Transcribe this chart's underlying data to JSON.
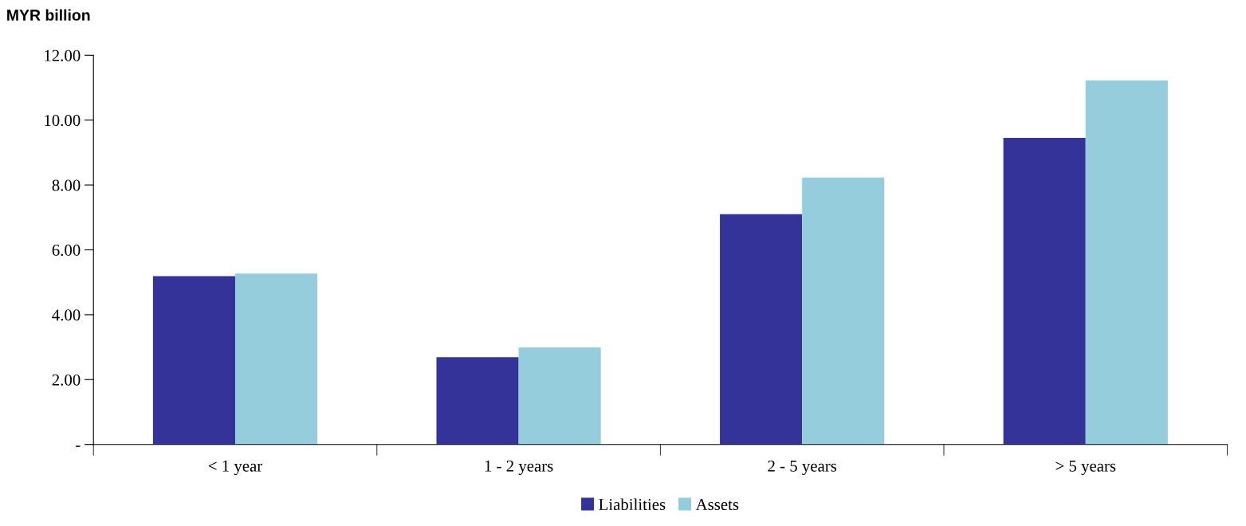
{
  "chart_data": {
    "type": "bar",
    "ylabel": "MYR billion",
    "categories": [
      "< 1 year",
      "1 - 2 years",
      "2 - 5 years",
      "> 5 years"
    ],
    "series": [
      {
        "name": "Liabilities",
        "color": "#333399",
        "values": [
          5.19,
          2.69,
          7.1,
          9.45
        ]
      },
      {
        "name": "Assets",
        "color": "#96cddd",
        "values": [
          5.27,
          2.99,
          8.23,
          11.22
        ]
      }
    ],
    "ylim": [
      0,
      12
    ],
    "yticks": [
      {
        "value": 0,
        "label": "-"
      },
      {
        "value": 2,
        "label": "2.00"
      },
      {
        "value": 4,
        "label": "4.00"
      },
      {
        "value": 6,
        "label": "6.00"
      },
      {
        "value": 8,
        "label": "8.00"
      },
      {
        "value": 10,
        "label": "10.00"
      },
      {
        "value": 12,
        "label": "12.00"
      }
    ],
    "grid": false,
    "legend": "bottom"
  }
}
